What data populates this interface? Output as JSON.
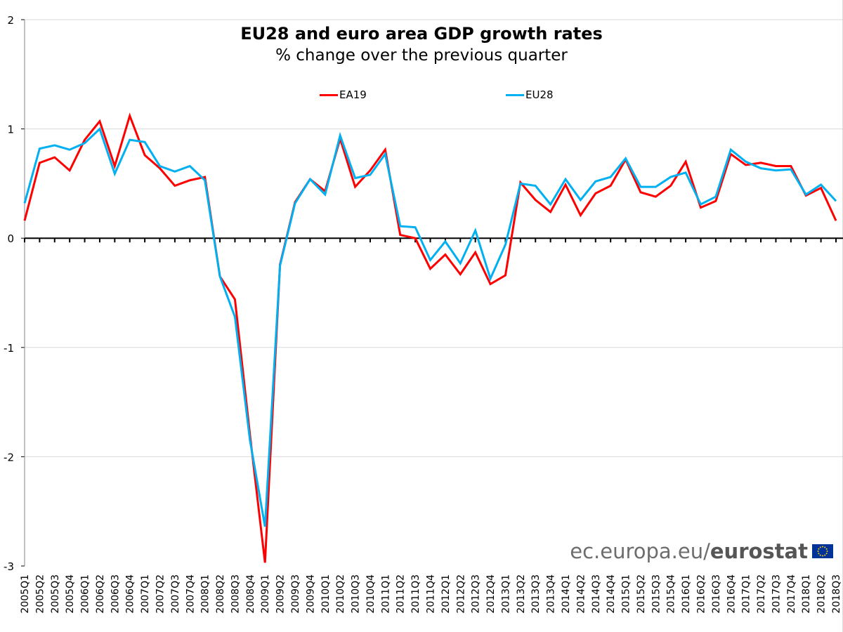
{
  "chart_data": {
    "type": "line",
    "title": "EU28 and euro area GDP growth rates",
    "subtitle": "% change over the previous quarter",
    "xlabel": "",
    "ylabel": "",
    "ylim": [
      -3,
      2
    ],
    "yticks": [
      2,
      1,
      0,
      -1,
      -2,
      -3
    ],
    "grid": true,
    "legend_position": "top",
    "x": [
      "2005Q1",
      "2005Q2",
      "2005Q3",
      "2005Q4",
      "2006Q1",
      "2006Q2",
      "2006Q3",
      "2006Q4",
      "2007Q1",
      "2007Q2",
      "2007Q3",
      "2007Q4",
      "2008Q1",
      "2008Q2",
      "2008Q3",
      "2008Q4",
      "2009Q1",
      "2009Q2",
      "2009Q3",
      "2009Q4",
      "2010Q1",
      "2010Q2",
      "2010Q3",
      "2010Q4",
      "2011Q1",
      "2011Q2",
      "2011Q3",
      "2011Q4",
      "2012Q1",
      "2012Q2",
      "2012Q3",
      "2012Q4",
      "2013Q1",
      "2013Q2",
      "2013Q3",
      "2013Q4",
      "2014Q1",
      "2014Q2",
      "2014Q3",
      "2014Q4",
      "2015Q1",
      "2015Q2",
      "2015Q3",
      "2015Q4",
      "2016Q1",
      "2016Q2",
      "2016Q3",
      "2016Q4",
      "2017Q1",
      "2017Q2",
      "2017Q3",
      "2017Q4",
      "2018Q1",
      "2018Q2",
      "2018Q3"
    ],
    "series": [
      {
        "name": "EA19",
        "color": "#ff0000",
        "values": [
          0.16,
          0.69,
          0.74,
          0.62,
          0.9,
          1.07,
          0.66,
          1.12,
          0.76,
          0.64,
          0.48,
          0.53,
          0.56,
          -0.35,
          -0.56,
          -1.8,
          -2.97,
          -0.24,
          0.33,
          0.54,
          0.43,
          0.91,
          0.47,
          0.62,
          0.81,
          0.03,
          0.0,
          -0.28,
          -0.15,
          -0.33,
          -0.13,
          -0.42,
          -0.34,
          0.51,
          0.35,
          0.24,
          0.49,
          0.21,
          0.41,
          0.48,
          0.72,
          0.42,
          0.38,
          0.48,
          0.7,
          0.28,
          0.34,
          0.77,
          0.67,
          0.69,
          0.66,
          0.66,
          0.39,
          0.46,
          0.16
        ]
      },
      {
        "name": "EU28",
        "color": "#00b0f0",
        "values": [
          0.32,
          0.82,
          0.85,
          0.81,
          0.87,
          1.0,
          0.59,
          0.9,
          0.88,
          0.66,
          0.61,
          0.66,
          0.53,
          -0.35,
          -0.72,
          -1.85,
          -2.64,
          -0.25,
          0.32,
          0.54,
          0.4,
          0.94,
          0.55,
          0.58,
          0.77,
          0.11,
          0.1,
          -0.2,
          -0.03,
          -0.23,
          0.07,
          -0.37,
          -0.06,
          0.5,
          0.48,
          0.31,
          0.54,
          0.35,
          0.52,
          0.56,
          0.73,
          0.47,
          0.47,
          0.56,
          0.6,
          0.31,
          0.38,
          0.81,
          0.7,
          0.64,
          0.62,
          0.63,
          0.4,
          0.49,
          0.34
        ]
      }
    ]
  },
  "logo": {
    "prefix": "ec.europa.eu/",
    "brand": "eurostat"
  }
}
